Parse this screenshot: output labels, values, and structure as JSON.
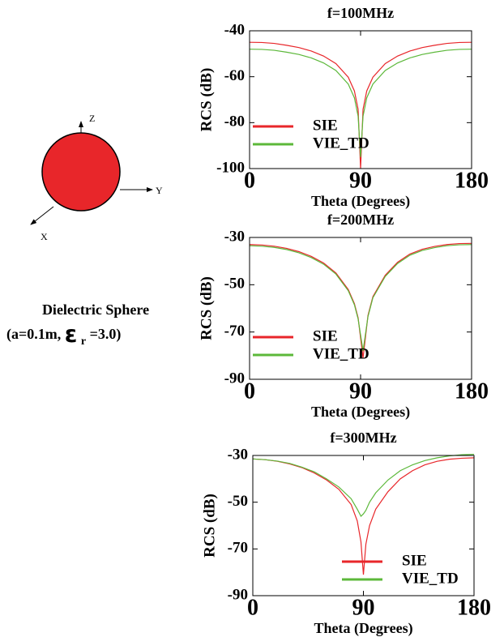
{
  "diagram": {
    "axis_z": "Z",
    "axis_y": "Y",
    "axis_x": "X",
    "caption_line1": "Dielectric Sphere",
    "caption_pre": "(a=0.1m,",
    "caption_eps": "ε",
    "caption_sub": "r",
    "caption_post": "=3.0)"
  },
  "chart_data": [
    {
      "type": "line",
      "title": "f=100MHz",
      "x_label": "Theta (Degrees)",
      "y_label": "RCS (dB)",
      "x": [
        0,
        10,
        20,
        30,
        40,
        50,
        60,
        70,
        80,
        85,
        88,
        90,
        92,
        95,
        100,
        110,
        120,
        130,
        140,
        150,
        160,
        170,
        180
      ],
      "series": [
        {
          "name": "SIE",
          "color": "#e8262a",
          "values": [
            -45,
            -45.1,
            -45.5,
            -46.3,
            -47.3,
            -48.8,
            -51,
            -54.3,
            -60.2,
            -66.2,
            -74.2,
            -100,
            -74.2,
            -66.2,
            -60.2,
            -54.3,
            -51,
            -48.8,
            -47.3,
            -46.3,
            -45.5,
            -45.1,
            -45
          ]
        },
        {
          "name": "VIE_TD",
          "color": "#5cb83a",
          "values": [
            -48,
            -48.1,
            -48.5,
            -49.3,
            -50.3,
            -51.8,
            -54,
            -57.3,
            -63.2,
            -69.2,
            -77.2,
            -95,
            -77.2,
            -69.2,
            -63.2,
            -57.3,
            -54,
            -51.8,
            -50.3,
            -49.3,
            -48.5,
            -48.1,
            -48
          ]
        }
      ],
      "xlim": [
        0,
        180
      ],
      "xticks": [
        0,
        90,
        180
      ],
      "ylim": [
        -100,
        -40
      ],
      "yticks": [
        -40,
        -60,
        -80,
        -100
      ],
      "legend": "lower left"
    },
    {
      "type": "line",
      "title": "f=200MHz",
      "x_label": "Theta (Degrees)",
      "y_label": "RCS (dB)",
      "x": [
        0,
        10,
        20,
        30,
        40,
        50,
        60,
        70,
        80,
        85,
        88,
        92,
        96,
        100,
        110,
        120,
        130,
        140,
        150,
        160,
        170,
        180
      ],
      "series": [
        {
          "name": "SIE",
          "color": "#e8262a",
          "values": [
            -33,
            -33.2,
            -33.7,
            -34.6,
            -36,
            -38,
            -40.8,
            -45,
            -52,
            -58,
            -64,
            -81,
            -63,
            -55,
            -46,
            -40.5,
            -37,
            -35,
            -33.8,
            -33,
            -32.6,
            -32.5
          ]
        },
        {
          "name": "VIE_TD",
          "color": "#5cb83a",
          "values": [
            -33.5,
            -33.7,
            -34.2,
            -35.1,
            -36.5,
            -38.5,
            -41.3,
            -45.5,
            -52.5,
            -58.5,
            -64.5,
            -78,
            -63.5,
            -55.5,
            -46.5,
            -41,
            -37.5,
            -35.5,
            -34.3,
            -33.5,
            -33.1,
            -33
          ]
        }
      ],
      "xlim": [
        0,
        180
      ],
      "xticks": [
        0,
        90,
        180
      ],
      "ylim": [
        -90,
        -30
      ],
      "yticks": [
        -30,
        -50,
        -70,
        -90
      ],
      "legend": "lower left"
    },
    {
      "type": "line",
      "title": "f=300MHz",
      "x_label": "Theta (Degrees)",
      "y_label": "RCS (dB)",
      "x": [
        0,
        10,
        20,
        30,
        40,
        50,
        60,
        70,
        80,
        85,
        88,
        90,
        92,
        95,
        100,
        110,
        120,
        130,
        140,
        150,
        160,
        170,
        180
      ],
      "series": [
        {
          "name": "SIE",
          "color": "#e8262a",
          "values": [
            -31.5,
            -31.8,
            -32.5,
            -33.6,
            -35.2,
            -37.5,
            -40.5,
            -44.5,
            -51,
            -58,
            -67,
            -81,
            -68,
            -60,
            -53,
            -45.5,
            -40,
            -36.5,
            -34,
            -32.5,
            -31.6,
            -31.2,
            -31
          ]
        },
        {
          "name": "VIE_TD",
          "color": "#5cb83a",
          "values": [
            -31.5,
            -31.8,
            -32.4,
            -33.4,
            -35,
            -37,
            -40,
            -43.5,
            -48.5,
            -53,
            -56,
            -55,
            -53.5,
            -50,
            -46,
            -40.5,
            -36.5,
            -34,
            -32.2,
            -31,
            -30.2,
            -29.7,
            -29.5
          ]
        }
      ],
      "xlim": [
        0,
        180
      ],
      "xticks": [
        0,
        90,
        180
      ],
      "ylim": [
        -90,
        -30
      ],
      "yticks": [
        -30,
        -50,
        -70,
        -90
      ],
      "legend": "lower right"
    }
  ]
}
